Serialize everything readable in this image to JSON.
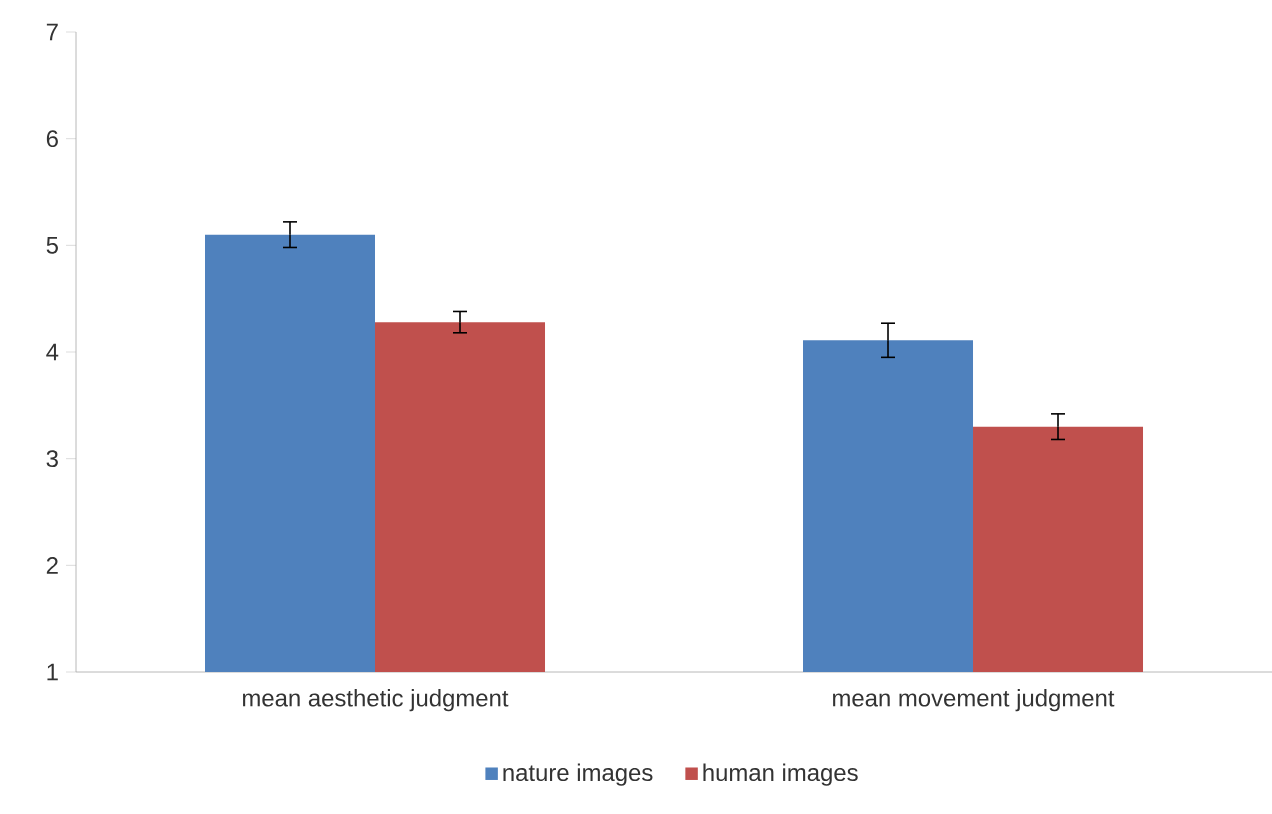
{
  "chart_data": {
    "type": "bar",
    "categories": [
      "mean aesthetic judgment",
      "mean movement judgment"
    ],
    "series": [
      {
        "name": "nature images",
        "color": "#4f81bd",
        "values": [
          5.1,
          4.11
        ],
        "errors": [
          0.12,
          0.16
        ]
      },
      {
        "name": "human images",
        "color": "#c0504d",
        "values": [
          4.28,
          3.3
        ],
        "errors": [
          0.1,
          0.12
        ]
      }
    ],
    "ylim": [
      1,
      7
    ],
    "yticks": [
      1,
      2,
      3,
      4,
      5,
      6,
      7
    ],
    "grid": false,
    "legend": "bottom"
  }
}
